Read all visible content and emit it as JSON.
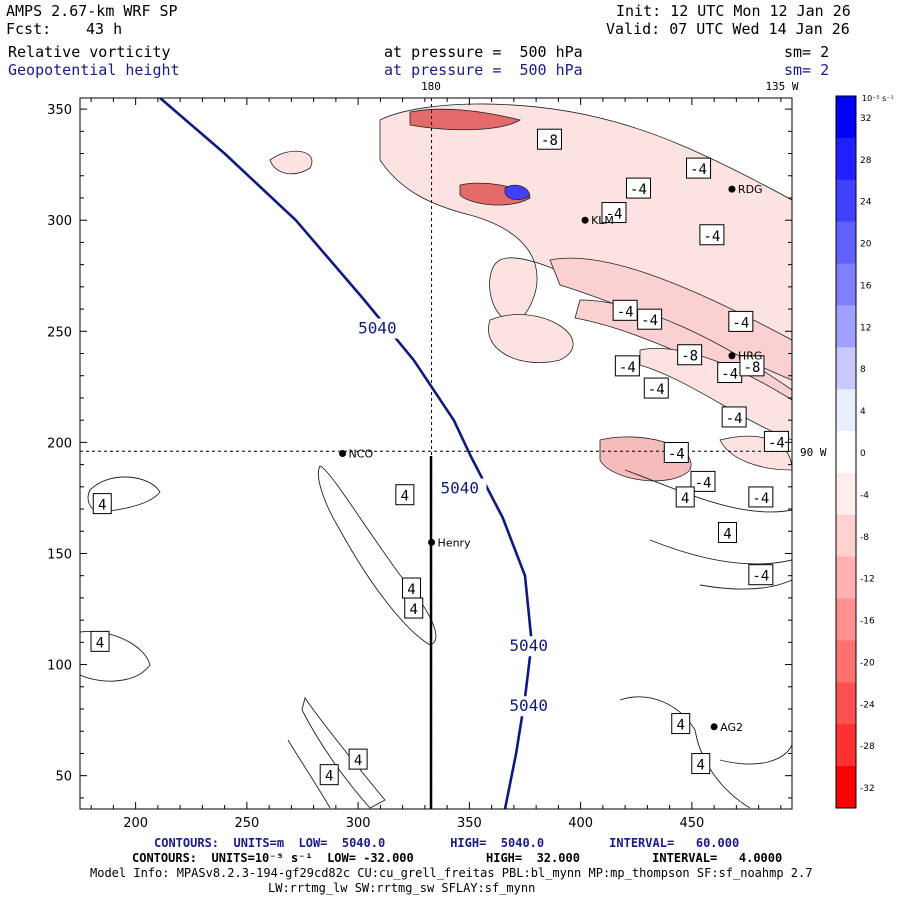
{
  "header": {
    "model_title": "AMPS 2.67-km WRF SP",
    "init": "Init: 12 UTC Mon 12 Jan 26",
    "fcst_label": "Fcst:",
    "fcst_value": "43 h",
    "valid": "Valid: 07 UTC Wed 14 Jan 26",
    "field1_name": "Relative vorticity",
    "field1_level": "at pressure =  500 hPa",
    "field1_sm": "sm= 2",
    "field2_name": "Geopotential height",
    "field2_level": "at pressure =  500 hPa",
    "field2_sm": "sm= 2"
  },
  "map_labels": {
    "lon_180": "180",
    "lon_135w": "135 W",
    "lon_90w": "90 W"
  },
  "colors": {
    "height_contour": "#0d1a80",
    "neg_fill_light": "#fde2e2",
    "neg_fill_mid": "#f3a4a4",
    "pos_fill": "#4040ff",
    "background": "#ffffff"
  },
  "chart_data": {
    "type": "contour-map",
    "xlim": [
      175,
      495
    ],
    "ylim": [
      35,
      355
    ],
    "xticks": [
      200,
      250,
      300,
      350,
      400,
      450
    ],
    "yticks": [
      50,
      100,
      150,
      200,
      250,
      300,
      350
    ],
    "height_contour_value": "5040",
    "height_contour_path": [
      [
        211,
        355
      ],
      [
        240,
        330
      ],
      [
        272,
        300
      ],
      [
        302,
        265
      ],
      [
        325,
        237
      ],
      [
        343,
        210
      ],
      [
        351,
        193
      ],
      [
        365,
        166
      ],
      [
        375,
        140
      ],
      [
        378,
        110
      ],
      [
        375,
        85
      ],
      [
        371,
        60
      ],
      [
        366,
        35
      ]
    ],
    "height_labels": [
      {
        "x": 300,
        "y": 249,
        "text": "5040"
      },
      {
        "x": 337,
        "y": 177,
        "text": "5040"
      },
      {
        "x": 368,
        "y": 106,
        "text": "5040"
      },
      {
        "x": 368,
        "y": 79,
        "text": "5040"
      }
    ],
    "vorticity_labels": [
      {
        "x": 386,
        "y": 336,
        "text": "-8"
      },
      {
        "x": 426,
        "y": 314,
        "text": "-4"
      },
      {
        "x": 415,
        "y": 303,
        "text": "-4"
      },
      {
        "x": 453,
        "y": 323,
        "text": "-4"
      },
      {
        "x": 459,
        "y": 293,
        "text": "-4"
      },
      {
        "x": 420,
        "y": 259,
        "text": "-4"
      },
      {
        "x": 431,
        "y": 255,
        "text": "-4"
      },
      {
        "x": 472,
        "y": 254,
        "text": "-4"
      },
      {
        "x": 449,
        "y": 239,
        "text": "-8"
      },
      {
        "x": 421,
        "y": 234,
        "text": "-4"
      },
      {
        "x": 434,
        "y": 224,
        "text": "-4"
      },
      {
        "x": 467,
        "y": 231,
        "text": "-4"
      },
      {
        "x": 477,
        "y": 234,
        "text": "-8"
      },
      {
        "x": 469,
        "y": 211,
        "text": "-4"
      },
      {
        "x": 488,
        "y": 200,
        "text": "-4"
      },
      {
        "x": 443,
        "y": 195,
        "text": "-4"
      },
      {
        "x": 455,
        "y": 182,
        "text": "-4"
      },
      {
        "x": 447,
        "y": 175,
        "text": "4"
      },
      {
        "x": 481,
        "y": 175,
        "text": "-4"
      },
      {
        "x": 466,
        "y": 159,
        "text": "4"
      },
      {
        "x": 481,
        "y": 140,
        "text": "-4"
      },
      {
        "x": 185,
        "y": 172,
        "text": "4"
      },
      {
        "x": 321,
        "y": 176,
        "text": "4"
      },
      {
        "x": 324,
        "y": 134,
        "text": "4"
      },
      {
        "x": 325,
        "y": 125,
        "text": "4"
      },
      {
        "x": 184,
        "y": 110,
        "text": "4"
      },
      {
        "x": 300,
        "y": 57,
        "text": "4"
      },
      {
        "x": 287,
        "y": 50,
        "text": "4"
      },
      {
        "x": 445,
        "y": 73,
        "text": "4"
      },
      {
        "x": 454,
        "y": 55,
        "text": "4"
      }
    ],
    "stations": [
      {
        "x": 293,
        "y": 195,
        "name": "NCO"
      },
      {
        "x": 333,
        "y": 155,
        "name": "Henry"
      },
      {
        "x": 402,
        "y": 300,
        "name": "KLM"
      },
      {
        "x": 468,
        "y": 314,
        "name": "RDG"
      },
      {
        "x": 468,
        "y": 239,
        "name": "HRG"
      },
      {
        "x": 460,
        "y": 72,
        "name": "AG2"
      }
    ],
    "reference_lines": {
      "lon_180_x": 333,
      "lat_90w_y": 196
    },
    "colorbar": {
      "unit_label": "10⁻⁵ s⁻¹",
      "levels": [
        32,
        28,
        24,
        20,
        16,
        12,
        8,
        4,
        0,
        -4,
        -8,
        -12,
        -16,
        -20,
        -24,
        -28,
        -32
      ],
      "level_labels": [
        "32",
        "28",
        "24",
        "20",
        "16",
        "12",
        "8",
        "4",
        "0",
        "-4",
        "-8",
        "-12",
        "-16",
        "-20",
        "-24",
        "-28",
        "-32"
      ],
      "colors": [
        "#0000ff",
        "#2020ff",
        "#4040ff",
        "#6060ff",
        "#8080ff",
        "#a0a0ff",
        "#c8c8ff",
        "#ececff",
        "#ffffff",
        "#ffecec",
        "#ffd0d0",
        "#ffb0b0",
        "#ff9090",
        "#ff7070",
        "#ff5050",
        "#ff3030",
        "#ff0000"
      ]
    }
  },
  "footer": {
    "line1": "CONTOURS:  UNITS=m  LOW=  5040.0         HIGH=  5040.0         INTERVAL=   60.000",
    "line2": "CONTOURS:  UNITS=10⁻⁵ s⁻¹  LOW= -32.000          HIGH=  32.000          INTERVAL=   4.0000",
    "line3": "Model Info: MPASv8.2.3-194-gf29cd82c CU:cu_grell_freitas PBL:bl_mynn MP:mp_thompson SF:sf_noahmp 2.7",
    "line4": "LW:rrtmg_lw SW:rrtmg_sw SFLAY:sf_mynn"
  }
}
